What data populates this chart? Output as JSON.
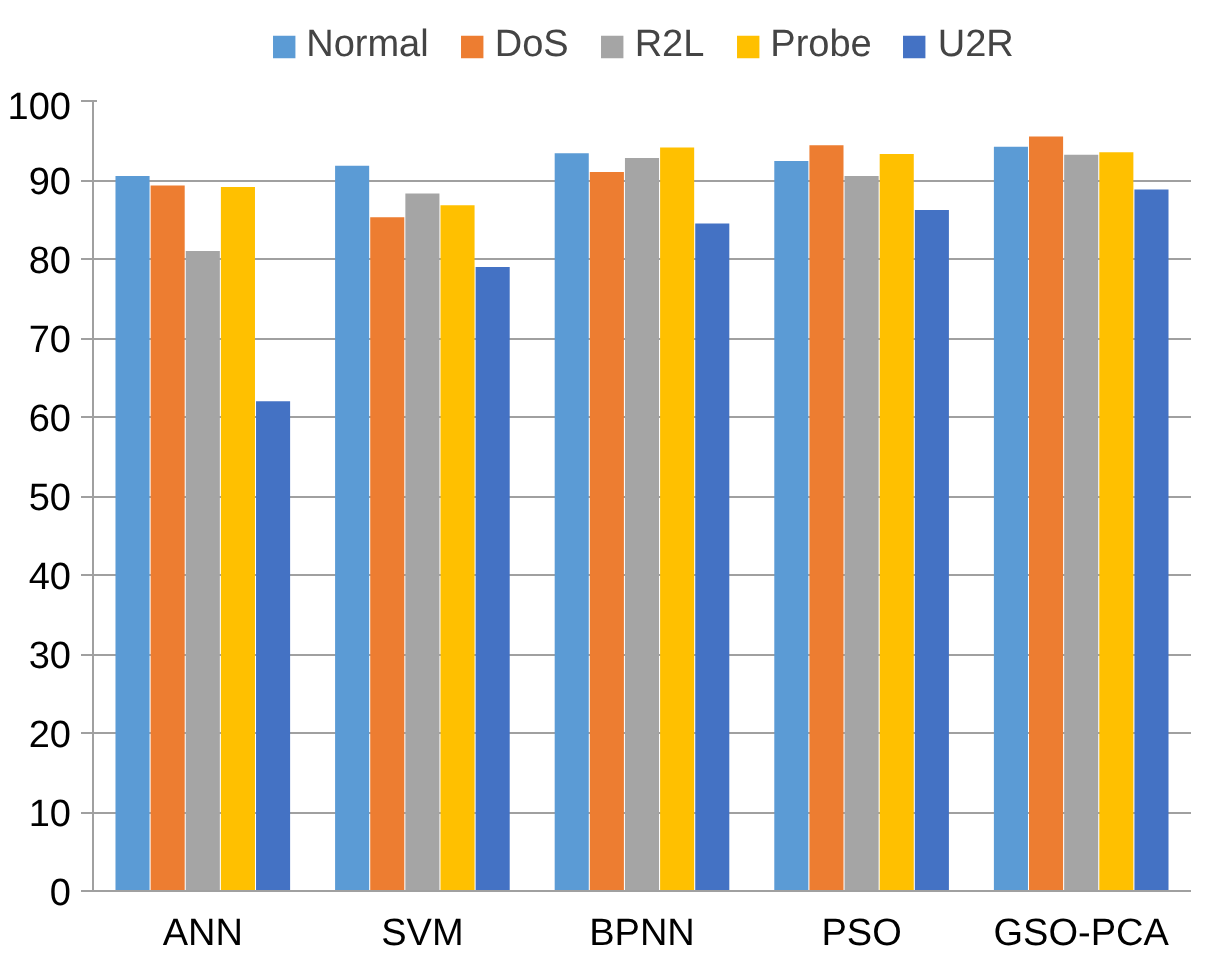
{
  "chart_data": {
    "type": "bar",
    "categories": [
      "ANN",
      "SVM",
      "BPNN",
      "PSO",
      "GSO-PCA"
    ],
    "series": [
      {
        "name": "Normal",
        "color": "#5b9bd5",
        "values": [
          90.5,
          91.8,
          93.4,
          92.4,
          94.2
        ]
      },
      {
        "name": "DoS",
        "color": "#ed7d31",
        "values": [
          89.3,
          85.3,
          91,
          94.4,
          95.5
        ]
      },
      {
        "name": "R2L",
        "color": "#a5a5a5",
        "values": [
          81,
          88.3,
          92.8,
          90.5,
          93.2
        ]
      },
      {
        "name": "Probe",
        "color": "#ffc000",
        "values": [
          89.1,
          86.8,
          94.1,
          93.3,
          93.5
        ]
      },
      {
        "name": "U2R",
        "color": "#4472c4",
        "values": [
          62,
          79,
          84.5,
          86.2,
          88.8
        ]
      }
    ],
    "ylim": [
      0,
      100
    ],
    "yticks": [
      0,
      10,
      20,
      30,
      40,
      50,
      60,
      70,
      80,
      90,
      100
    ],
    "grid": "y",
    "legend": "top"
  }
}
